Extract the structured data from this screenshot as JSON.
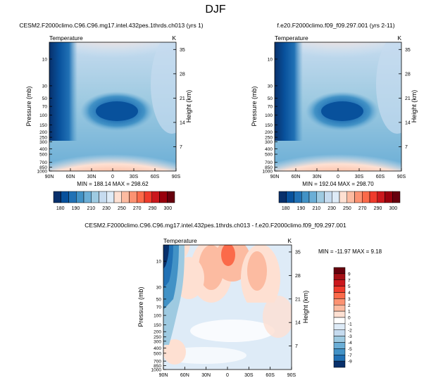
{
  "figure_title": "DJF",
  "chart_data": [
    {
      "type": "heatmap",
      "title": "CESM2.F2000climo.C96.C96.mg17.intel.432pes.1thrds.ch013 (yrs 1)",
      "variable_label": "Temperature",
      "units_label": "K",
      "ylabel": "Pressure (mb)",
      "ylabel_right": "Height (km)",
      "x_ticks": [
        "90N",
        "60N",
        "30N",
        "0",
        "30S",
        "60S",
        "90S"
      ],
      "y_ticks": [
        "10",
        "30",
        "50",
        "70",
        "100",
        "150",
        "200",
        "250",
        "300",
        "400",
        "500",
        "700",
        "850",
        "1000"
      ],
      "y_ticks_right": [
        "35",
        "28",
        "21",
        "14",
        "7"
      ],
      "stats_text": "MIN = 188.14   MAX = 298.62",
      "min": 188.14,
      "max": 298.62,
      "colorbar_levels": [
        "180",
        "190",
        "210",
        "230",
        "250",
        "270",
        "290",
        "300"
      ],
      "colorbar_colors": [
        "#08306b",
        "#08519c",
        "#2171b5",
        "#4292c6",
        "#6baed6",
        "#9ecae1",
        "#c6dbef",
        "#deebf7",
        "#fee0d2",
        "#fcbba1",
        "#fc9272",
        "#fb6a4a",
        "#ef3b2c",
        "#cb181d",
        "#99000d",
        "#67000d"
      ]
    },
    {
      "type": "heatmap",
      "title": "f.e20.F2000climo.f09_f09.297.001 (yrs 2-11)",
      "variable_label": "Temperature",
      "units_label": "K",
      "ylabel": "Pressure (mb)",
      "ylabel_right": "Height (km)",
      "x_ticks": [
        "90N",
        "60N",
        "30N",
        "0",
        "30S",
        "60S",
        "90S"
      ],
      "y_ticks": [
        "10",
        "30",
        "50",
        "70",
        "100",
        "150",
        "200",
        "250",
        "300",
        "400",
        "500",
        "700",
        "850",
        "1000"
      ],
      "y_ticks_right": [
        "35",
        "28",
        "21",
        "14",
        "7"
      ],
      "stats_text": "MIN = 192.04   MAX = 298.70",
      "min": 192.04,
      "max": 298.7,
      "colorbar_levels": [
        "180",
        "190",
        "210",
        "230",
        "250",
        "270",
        "290",
        "300"
      ],
      "colorbar_colors": [
        "#08306b",
        "#08519c",
        "#2171b5",
        "#4292c6",
        "#6baed6",
        "#9ecae1",
        "#c6dbef",
        "#deebf7",
        "#fee0d2",
        "#fcbba1",
        "#fc9272",
        "#fb6a4a",
        "#ef3b2c",
        "#cb181d",
        "#99000d",
        "#67000d"
      ]
    },
    {
      "type": "heatmap",
      "title": "CESM2.F2000climo.C96.C96.mg17.intel.432pes.1thrds.ch013 - f.e20.F2000climo.f09_f09.297.001",
      "variable_label": "Temperature",
      "units_label": "K",
      "ylabel": "Pressure (mb)",
      "ylabel_right": "Height (km)",
      "x_ticks": [
        "90N",
        "60N",
        "30N",
        "0",
        "30S",
        "60S",
        "90S"
      ],
      "y_ticks": [
        "10",
        "30",
        "50",
        "70",
        "100",
        "150",
        "200",
        "250",
        "300",
        "400",
        "500",
        "700",
        "850",
        "1000"
      ],
      "y_ticks_right": [
        "35",
        "28",
        "21",
        "14",
        "7"
      ],
      "stats_text": "MIN = -11.97  MAX =  9.18",
      "min": -11.97,
      "max": 9.18,
      "colorbar_levels": [
        "9",
        "7",
        "5",
        "4",
        "3",
        "2",
        "1",
        "0",
        "-1",
        "-2",
        "-3",
        "-4",
        "-5",
        "-7",
        "-9"
      ],
      "colorbar_colors": [
        "#67000d",
        "#a50f15",
        "#cb181d",
        "#ef3b2c",
        "#fb6a4a",
        "#fc9272",
        "#fcbba1",
        "#fee0d2",
        "#ffffff",
        "#deebf7",
        "#c6dbef",
        "#9ecae1",
        "#6baed6",
        "#4292c6",
        "#2171b5",
        "#08306b"
      ]
    }
  ]
}
